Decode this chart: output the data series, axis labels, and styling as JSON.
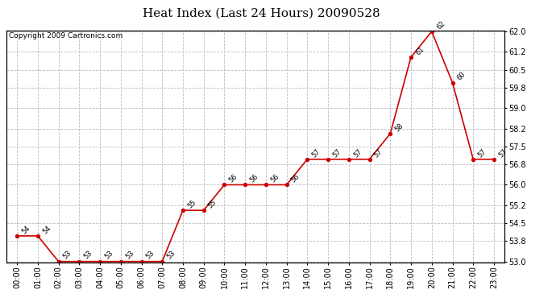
{
  "title": "Heat Index (Last 24 Hours) 20090528",
  "copyright": "Copyright 2009 Cartronics.com",
  "hours": [
    "00:00",
    "01:00",
    "02:00",
    "03:00",
    "04:00",
    "05:00",
    "06:00",
    "07:00",
    "08:00",
    "09:00",
    "10:00",
    "11:00",
    "12:00",
    "13:00",
    "14:00",
    "15:00",
    "16:00",
    "17:00",
    "18:00",
    "19:00",
    "20:00",
    "21:00",
    "22:00",
    "23:00"
  ],
  "values": [
    54,
    54,
    53,
    53,
    53,
    53,
    53,
    53,
    55,
    55,
    56,
    56,
    56,
    56,
    57,
    57,
    57,
    57,
    58,
    61,
    62,
    60,
    57,
    57
  ],
  "ylim_min": 53.0,
  "ylim_max": 62.0,
  "yticks": [
    53.0,
    53.8,
    54.5,
    55.2,
    56.0,
    56.8,
    57.5,
    58.2,
    59.0,
    59.8,
    60.5,
    61.2,
    62.0
  ],
  "line_color": "#cc0000",
  "marker_color": "#cc0000",
  "bg_color": "#ffffff",
  "grid_color": "#bbbbbb",
  "title_fontsize": 11,
  "tick_fontsize": 7,
  "copyright_fontsize": 6.5,
  "annotation_fontsize": 6
}
